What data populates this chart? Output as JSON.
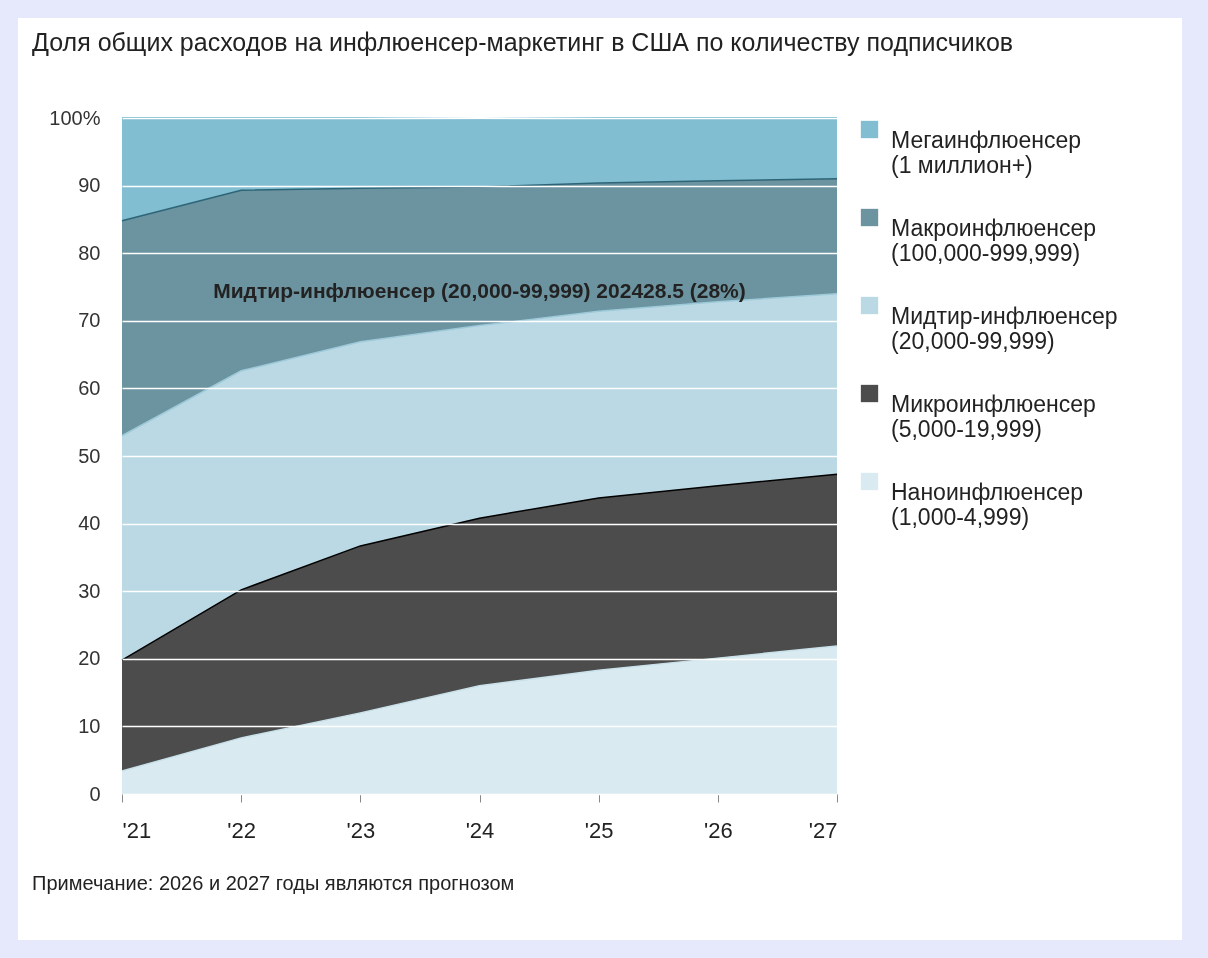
{
  "chart_data": {
    "type": "area",
    "stacked": true,
    "title": "Доля общих расходов на инфлюенсер-маркетинг в США по количеству подписчиков",
    "categories": [
      "'21",
      "'22",
      "'23",
      "'24",
      "'25",
      "'26",
      "'27"
    ],
    "series": [
      {
        "name": "Наноинфлюенсер (1,000-4,999)",
        "color": "#c9e1ea",
        "values": [
          3.4,
          8.3,
          12,
          16,
          18.3,
          20.1,
          21.9
        ]
      },
      {
        "name": "Микроинфлюенсер (5,000-19,999)",
        "color": "#000000",
        "values": [
          16.4,
          21.9,
          24.7,
          24.8,
          25.5,
          25.5,
          25.4
        ]
      },
      {
        "name": "Мидтир-инфлюенсер (20,000-99,999)",
        "color": "#9dc9d8",
        "values": [
          33.2,
          32.4,
          30.2,
          28.5,
          27.6,
          27.2,
          26.7
        ]
      },
      {
        "name": "Макроинфлюенсер (100,000-999,999)",
        "color": "#2d6577",
        "values": [
          31.8,
          26.7,
          22.7,
          20.5,
          19,
          17.9,
          17
        ]
      },
      {
        "name": "Мегаинфлюенсер (1 миллион+)",
        "color": "#4ba3bd",
        "values": [
          15.2,
          10.7,
          10.4,
          10.1,
          9.6,
          9.3,
          9
        ]
      }
    ],
    "ylim": [
      0,
      100
    ],
    "yticks": [
      0,
      10,
      20,
      30,
      40,
      50,
      60,
      70,
      80,
      90,
      {
        "value": 100,
        "label": "100%"
      }
    ],
    "grid": "y",
    "legend": "right",
    "annotations": [
      {
        "text": "Мидтир-инфлюенсер (20,000-99,999) 202428.5 (28%)",
        "x": "'24",
        "y": 69.3
      },
      "Примечание: 2026 и 2027 годы являются прогнозом"
    ]
  }
}
